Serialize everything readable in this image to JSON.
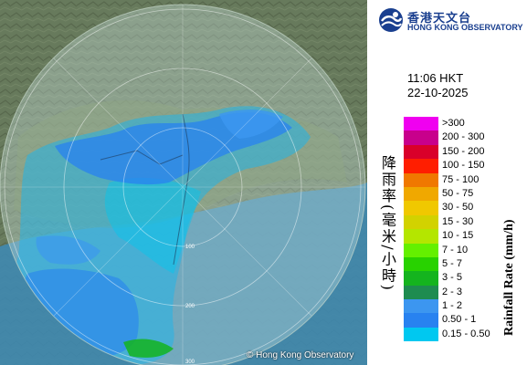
{
  "agency": {
    "name_cn": "香港天文台",
    "name_en": "HONG KONG OBSERVATORY"
  },
  "observation": {
    "time": "11:06 HKT",
    "date": "22-10-2025"
  },
  "legend": {
    "items": [
      {
        "label": ">300",
        "color": "#f000f0"
      },
      {
        "label": "200 - 300",
        "color": "#c8008c"
      },
      {
        "label": "150 - 200",
        "color": "#d9002a"
      },
      {
        "label": "100 - 150",
        "color": "#ff1e00"
      },
      {
        "label": "75 - 100",
        "color": "#f07800"
      },
      {
        "label": "50 - 75",
        "color": "#f0a800"
      },
      {
        "label": "30 - 50",
        "color": "#f0c800"
      },
      {
        "label": "15 - 30",
        "color": "#d2d200"
      },
      {
        "label": "10 - 15",
        "color": "#b4e600"
      },
      {
        "label": "7 - 10",
        "color": "#64f000"
      },
      {
        "label": "5 - 7",
        "color": "#28d200"
      },
      {
        "label": "3 - 5",
        "color": "#14b41e"
      },
      {
        "label": "2 - 3",
        "color": "#1e8c50"
      },
      {
        "label": "1 - 2",
        "color": "#3c96f0"
      },
      {
        "label": "0.50 - 1",
        "color": "#2882f0"
      },
      {
        "label": "0.15 - 0.50",
        "color": "#00c8f0"
      }
    ],
    "unit_cn": "降雨率(毫米/小時)",
    "unit_en": "Rainfall Rate (mm/h)"
  },
  "map": {
    "copyright": "© Hong Kong Observatory",
    "range_labels": [
      "100",
      "200",
      "300"
    ]
  },
  "icons": {
    "logo": "hong-kong-observatory-logo"
  }
}
